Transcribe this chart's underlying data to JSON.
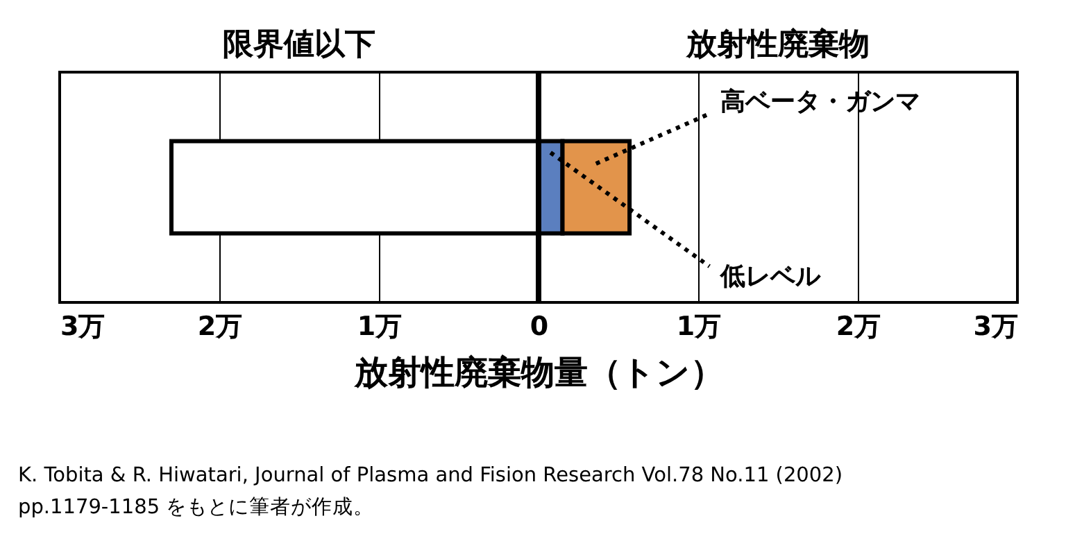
{
  "chart_data": {
    "type": "bar",
    "orientation": "horizontal",
    "stacked": true,
    "xlabel": "放射性廃棄物量（トン）",
    "categories": [
      null
    ],
    "series": [
      {
        "color": "#ffffff",
        "values": [
          -2.3
        ]
      },
      {
        "name": "低レベル",
        "color": "#5b7fbf",
        "values": [
          0.15
        ]
      },
      {
        "name": "高ベータ・ガンマ",
        "color": "#e2944b",
        "values": [
          0.42
        ]
      }
    ],
    "xlim": [
      -3,
      3
    ],
    "xticks": [
      {
        "value": -3,
        "label": "3万"
      },
      {
        "value": -2,
        "label": "2万"
      },
      {
        "value": -1,
        "label": "1万"
      },
      0,
      {
        "value": 1,
        "label": "1万"
      },
      {
        "value": 2,
        "label": "2万"
      },
      {
        "value": 3,
        "label": "3万"
      }
    ],
    "ref_lines": [
      {
        "axis": "x",
        "value": 0
      }
    ],
    "grid": "x",
    "tick_labels": "x",
    "annotations": [
      "限界値以下",
      "放射性廃棄物",
      "K. Tobita & R. Hiwatari, Journal of Plasma and Fision Research Vol.78 No.11 (2002)",
      "pp.1179-1185  をもとに筆者が作成。"
    ]
  }
}
